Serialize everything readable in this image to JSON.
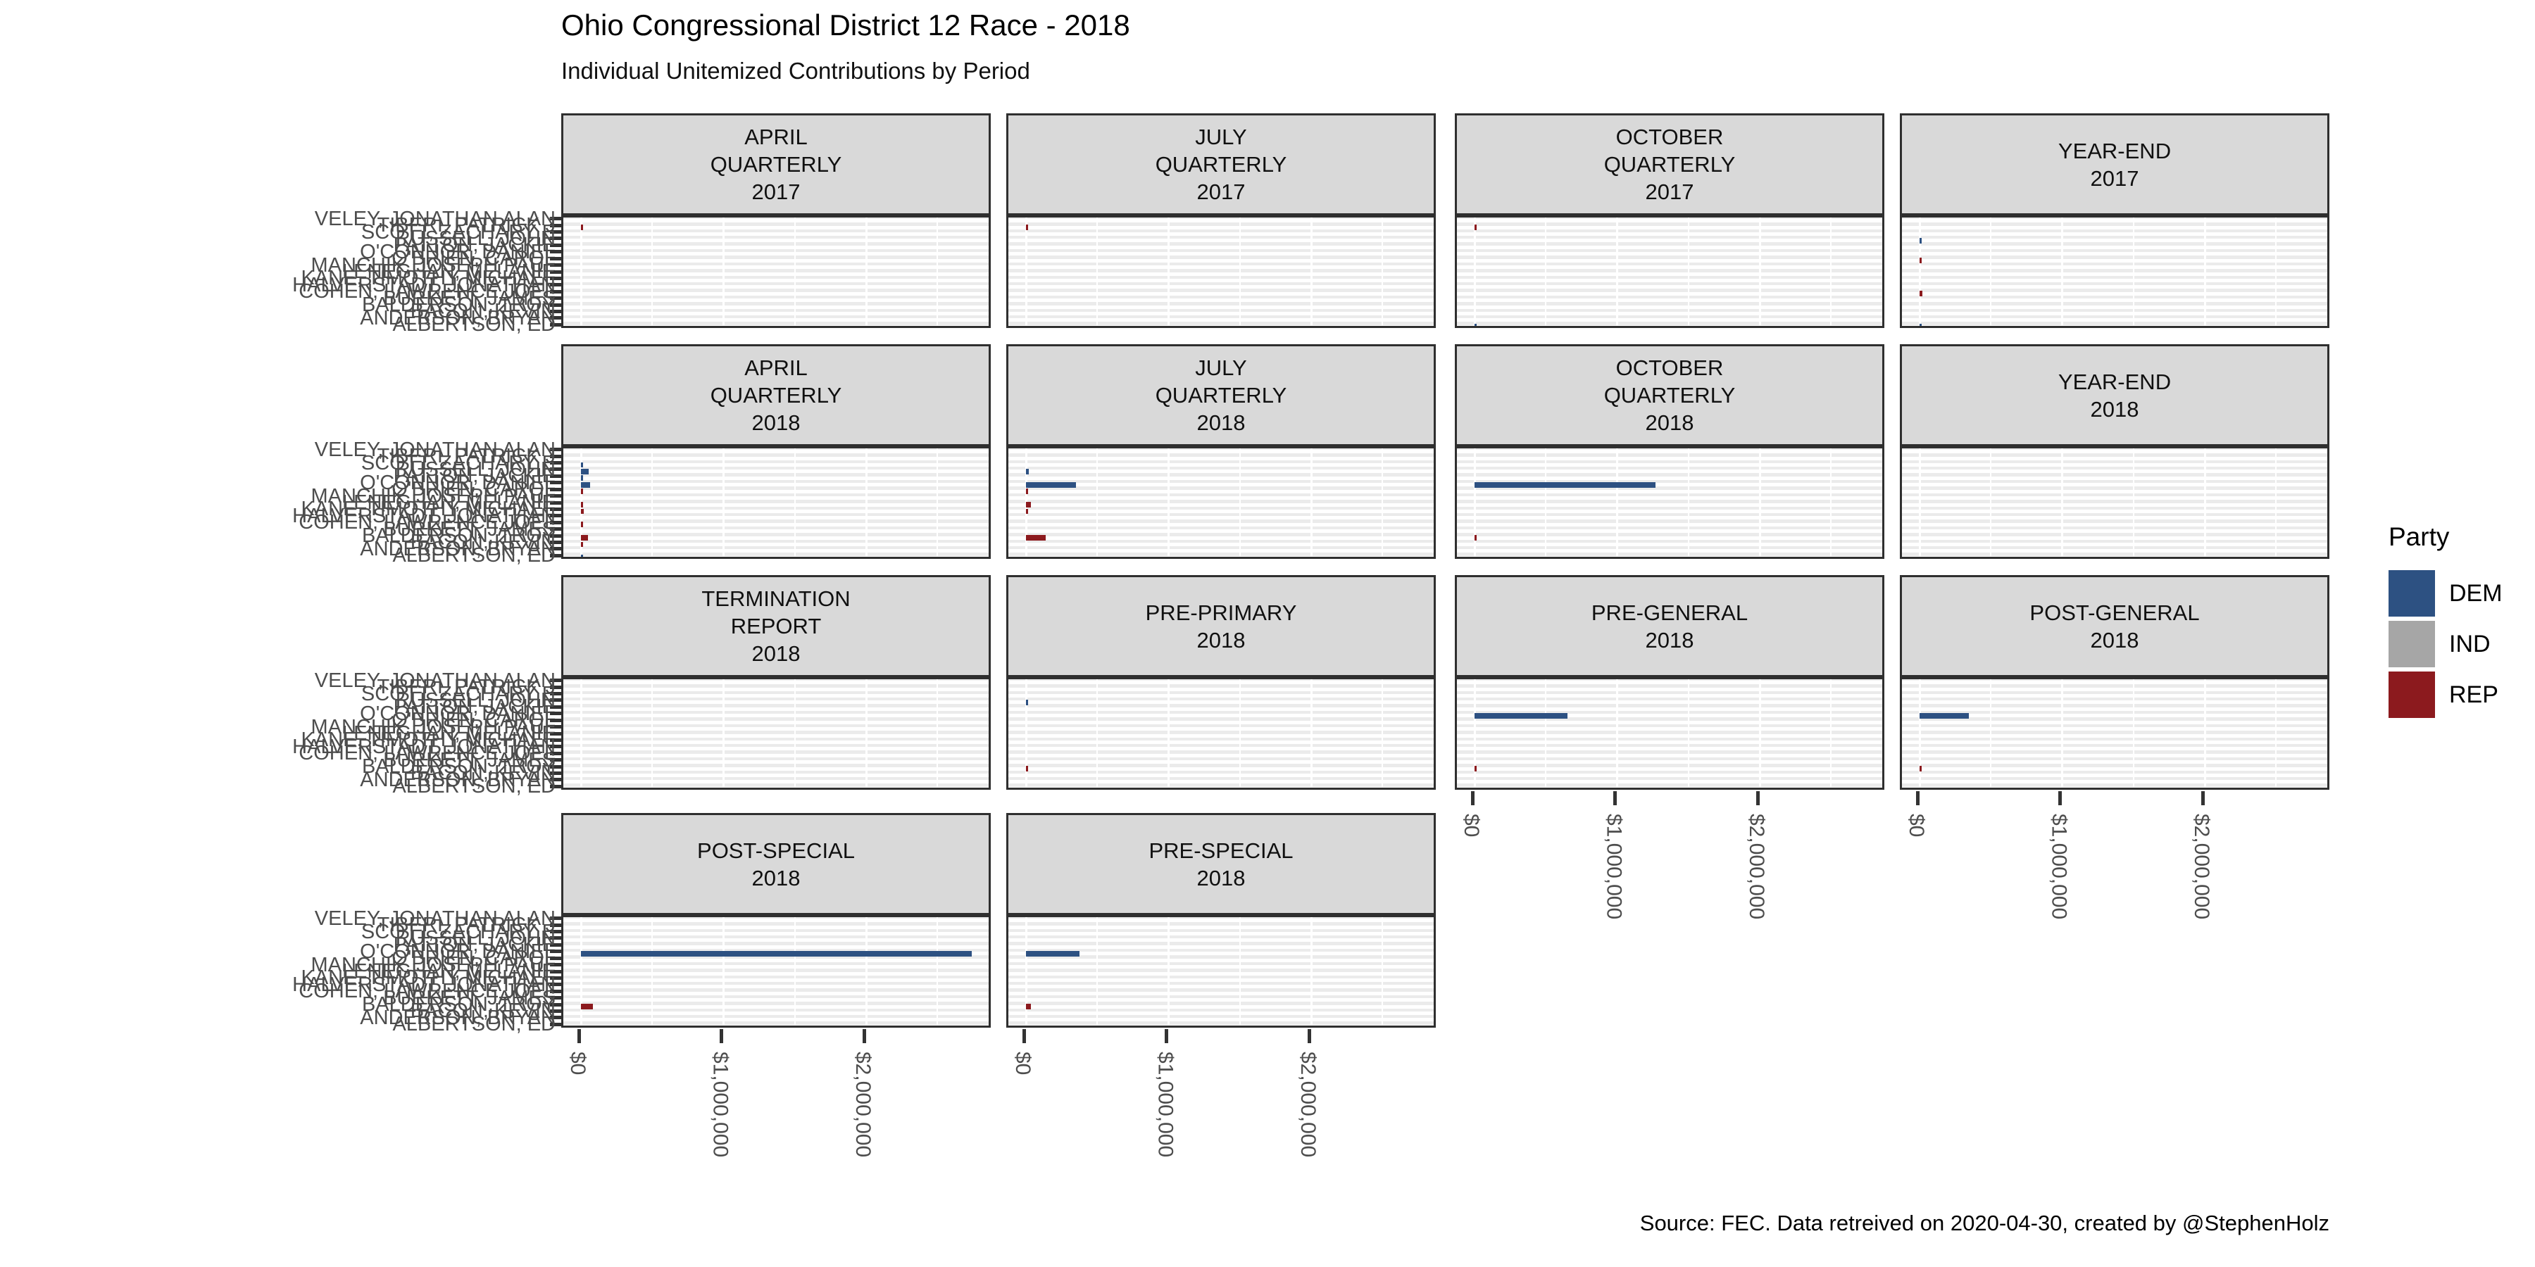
{
  "header": {
    "title": "Ohio Congressional District 12 Race - 2018",
    "subtitle": "Individual Unitemized Contributions by Period"
  },
  "source_note": "Source: FEC. Data retreived on 2020-04-30, created by @StephenHolz",
  "legend": {
    "title": "Party",
    "items": [
      {
        "label": "DEM",
        "color": "#2d5182"
      },
      {
        "label": "IND",
        "color": "#a6a6a6"
      },
      {
        "label": "REP",
        "color": "#8c1a1e"
      }
    ]
  },
  "candidates": [
    {
      "name": "VELEY, JONATHAN ALAN",
      "party": "IND"
    },
    {
      "name": "TIBERI, PATRICK J",
      "party": "REP"
    },
    {
      "name": "SCOTT, ZACHARY E",
      "party": "DEM"
    },
    {
      "name": "RUSSELL, JOHN",
      "party": "DEM"
    },
    {
      "name": "PATTON, JACKIE",
      "party": "DEM"
    },
    {
      "name": "O'CONNOR, DANIEL",
      "party": "DEM"
    },
    {
      "name": "O'BRIEN, CAROL",
      "party": "REP"
    },
    {
      "name": "MANCHIK, JOSEPH PAUL",
      "party": "IND"
    },
    {
      "name": "LENEGHAN, MELANIE",
      "party": "REP"
    },
    {
      "name": "KANE, TIMOTHY MICHAEL",
      "party": "REP"
    },
    {
      "name": "HALVERSTADT, JONATHAN",
      "party": "DEM"
    },
    {
      "name": "COHEN, LAWRENCE JOEL",
      "party": "REP"
    },
    {
      "name": "BURKETT, JAMES",
      "party": "REP"
    },
    {
      "name": "BALDERSON, TROY",
      "party": "REP"
    },
    {
      "name": "BACON, KEVIN",
      "party": "REP"
    },
    {
      "name": "ANDERSON, BRYAN",
      "party": "DEM"
    },
    {
      "name": "ALBERTSON, ED",
      "party": "DEM"
    }
  ],
  "chart_data": {
    "type": "bar",
    "orientation": "horizontal",
    "unit": "USD",
    "x_axis": {
      "tick_labels": [
        "$0",
        "$1,000,000",
        "$2,000,000"
      ],
      "tick_values": [
        0,
        1000000,
        2000000
      ],
      "max_value": 2880000,
      "minor_grid_step": 500000
    },
    "panels": [
      {
        "id": "april-quarterly-2017",
        "grid": {
          "row": 1,
          "col": 1
        },
        "title_lines": [
          "APRIL",
          "QUARTERLY",
          "2017"
        ],
        "show_x_axis": false,
        "bars": [
          {
            "candidate": 2,
            "value": 10000
          }
        ]
      },
      {
        "id": "july-quarterly-2017",
        "grid": {
          "row": 1,
          "col": 2
        },
        "title_lines": [
          "JULY",
          "QUARTERLY",
          "2017"
        ],
        "show_x_axis": false,
        "bars": [
          {
            "candidate": 2,
            "value": 8000
          }
        ]
      },
      {
        "id": "october-quarterly-2017",
        "grid": {
          "row": 1,
          "col": 3
        },
        "title_lines": [
          "OCTOBER",
          "QUARTERLY",
          "2017"
        ],
        "show_x_axis": false,
        "bars": [
          {
            "candidate": 2,
            "value": 12000
          },
          {
            "candidate": 17,
            "value": 5000
          }
        ]
      },
      {
        "id": "year-end-2017",
        "grid": {
          "row": 1,
          "col": 4
        },
        "title_lines": [
          "YEAR-END",
          "2017"
        ],
        "show_x_axis": false,
        "bars": [
          {
            "candidate": 4,
            "value": 12000
          },
          {
            "candidate": 7,
            "value": 6000
          },
          {
            "candidate": 12,
            "value": 18000
          },
          {
            "candidate": 17,
            "value": 6000
          }
        ]
      },
      {
        "id": "april-quarterly-2018",
        "grid": {
          "row": 2,
          "col": 1
        },
        "title_lines": [
          "APRIL",
          "QUARTERLY",
          "2018"
        ],
        "show_x_axis": false,
        "bars": [
          {
            "candidate": 3,
            "value": 6000
          },
          {
            "candidate": 4,
            "value": 55000
          },
          {
            "candidate": 5,
            "value": 4000
          },
          {
            "candidate": 6,
            "value": 62000
          },
          {
            "candidate": 7,
            "value": 15000
          },
          {
            "candidate": 9,
            "value": 14000
          },
          {
            "candidate": 10,
            "value": 22000
          },
          {
            "candidate": 12,
            "value": 7000
          },
          {
            "candidate": 14,
            "value": 48000
          },
          {
            "candidate": 15,
            "value": 6000
          },
          {
            "candidate": 17,
            "value": 6000
          }
        ]
      },
      {
        "id": "july-quarterly-2018",
        "grid": {
          "row": 2,
          "col": 2
        },
        "title_lines": [
          "JULY",
          "QUARTERLY",
          "2018"
        ],
        "show_x_axis": false,
        "bars": [
          {
            "candidate": 4,
            "value": 20000
          },
          {
            "candidate": 6,
            "value": 350000
          },
          {
            "candidate": 7,
            "value": 6000
          },
          {
            "candidate": 9,
            "value": 35000
          },
          {
            "candidate": 10,
            "value": 8000
          },
          {
            "candidate": 14,
            "value": 140000
          }
        ]
      },
      {
        "id": "october-quarterly-2018",
        "grid": {
          "row": 2,
          "col": 3
        },
        "title_lines": [
          "OCTOBER",
          "QUARTERLY",
          "2018"
        ],
        "show_x_axis": false,
        "bars": [
          {
            "candidate": 6,
            "value": 1270000
          },
          {
            "candidate": 14,
            "value": 15000
          }
        ]
      },
      {
        "id": "year-end-2018",
        "grid": {
          "row": 2,
          "col": 4
        },
        "title_lines": [
          "YEAR-END",
          "2018"
        ],
        "show_x_axis": false,
        "bars": []
      },
      {
        "id": "termination-report-2018",
        "grid": {
          "row": 3,
          "col": 1
        },
        "title_lines": [
          "TERMINATION",
          "REPORT",
          "2018"
        ],
        "show_x_axis": false,
        "bars": []
      },
      {
        "id": "pre-primary-2018",
        "grid": {
          "row": 3,
          "col": 2
        },
        "title_lines": [
          "PRE-PRIMARY",
          "2018"
        ],
        "show_x_axis": false,
        "bars": [
          {
            "candidate": 4,
            "value": 5000
          },
          {
            "candidate": 14,
            "value": 8000
          }
        ]
      },
      {
        "id": "pre-general-2018",
        "grid": {
          "row": 3,
          "col": 3
        },
        "title_lines": [
          "PRE-GENERAL",
          "2018"
        ],
        "show_x_axis": true,
        "bars": [
          {
            "candidate": 6,
            "value": 650000
          },
          {
            "candidate": 14,
            "value": 10000
          }
        ]
      },
      {
        "id": "post-general-2018",
        "grid": {
          "row": 3,
          "col": 4
        },
        "title_lines": [
          "POST-GENERAL",
          "2018"
        ],
        "show_x_axis": true,
        "bars": [
          {
            "candidate": 6,
            "value": 345000
          },
          {
            "candidate": 14,
            "value": 10000
          }
        ]
      },
      {
        "id": "post-special-2018",
        "grid": {
          "row": 4,
          "col": 1
        },
        "title_lines": [
          "POST-SPECIAL",
          "2018"
        ],
        "show_x_axis": true,
        "bars": [
          {
            "candidate": 6,
            "value": 2740000
          },
          {
            "candidate": 14,
            "value": 85000
          }
        ]
      },
      {
        "id": "pre-special-2018",
        "grid": {
          "row": 4,
          "col": 2
        },
        "title_lines": [
          "PRE-SPECIAL",
          "2018"
        ],
        "show_x_axis": true,
        "bars": [
          {
            "candidate": 6,
            "value": 375000
          },
          {
            "candidate": 14,
            "value": 35000
          }
        ]
      }
    ]
  }
}
